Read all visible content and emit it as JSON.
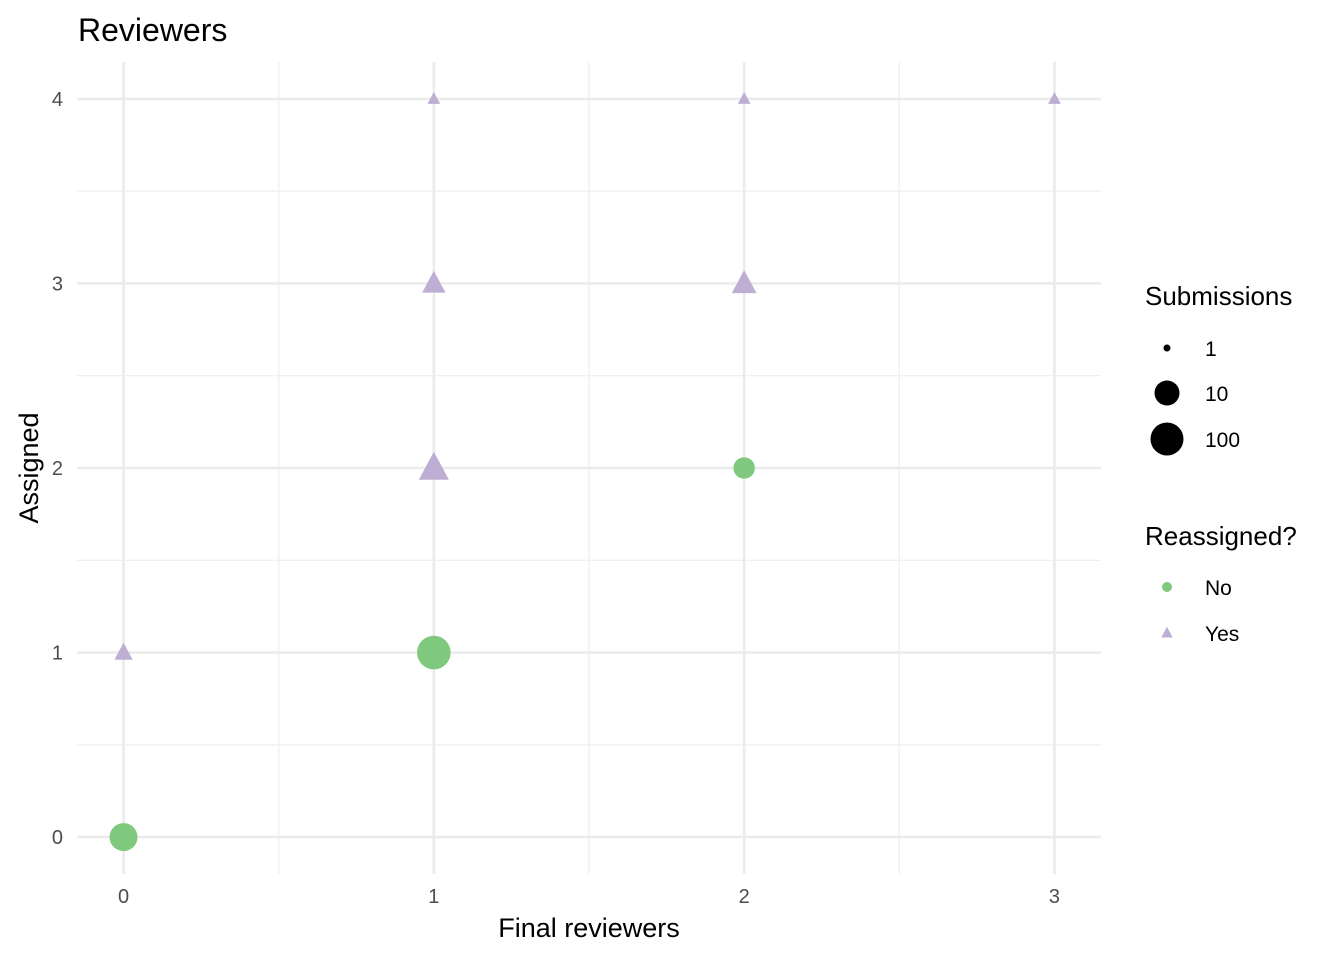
{
  "chart_data": {
    "type": "scatter",
    "title": "Reviewers",
    "xlabel": "Final reviewers",
    "ylabel": "Assigned",
    "xlim": [
      -0.15,
      3.15
    ],
    "ylim": [
      -0.2,
      4.2
    ],
    "x_ticks": [
      0,
      1,
      2,
      3
    ],
    "y_ticks": [
      0,
      1,
      2,
      3,
      4
    ],
    "x_tick_labels": [
      "0",
      "1",
      "2",
      "3"
    ],
    "y_tick_labels": [
      "0",
      "1",
      "2",
      "3",
      "4"
    ],
    "grid": true,
    "size_legend": {
      "title": "Submissions",
      "entries": [
        {
          "label": "1",
          "value": 1
        },
        {
          "label": "10",
          "value": 10
        },
        {
          "label": "100",
          "value": 100
        }
      ]
    },
    "shape_legend": {
      "title": "Reassigned?",
      "entries": [
        {
          "label": "No",
          "shape": "circle",
          "color": "#7fc97f"
        },
        {
          "label": "Yes",
          "shape": "triangle",
          "color": "#beaed4"
        }
      ]
    },
    "legend_placement": "right",
    "points": [
      {
        "x": 0,
        "y": 0,
        "reassigned": "No",
        "submissions": 90
      },
      {
        "x": 1,
        "y": 1,
        "reassigned": "No",
        "submissions": 130
      },
      {
        "x": 2,
        "y": 2,
        "reassigned": "No",
        "submissions": 20
      },
      {
        "x": 0,
        "y": 1,
        "reassigned": "Yes",
        "submissions": 5
      },
      {
        "x": 1,
        "y": 2,
        "reassigned": "Yes",
        "submissions": 60
      },
      {
        "x": 1,
        "y": 3,
        "reassigned": "Yes",
        "submissions": 15
      },
      {
        "x": 2,
        "y": 3,
        "reassigned": "Yes",
        "submissions": 20
      },
      {
        "x": 1,
        "y": 4,
        "reassigned": "Yes",
        "submissions": 1
      },
      {
        "x": 2,
        "y": 4,
        "reassigned": "Yes",
        "submissions": 1
      },
      {
        "x": 3,
        "y": 4,
        "reassigned": "Yes",
        "submissions": 1
      }
    ]
  }
}
